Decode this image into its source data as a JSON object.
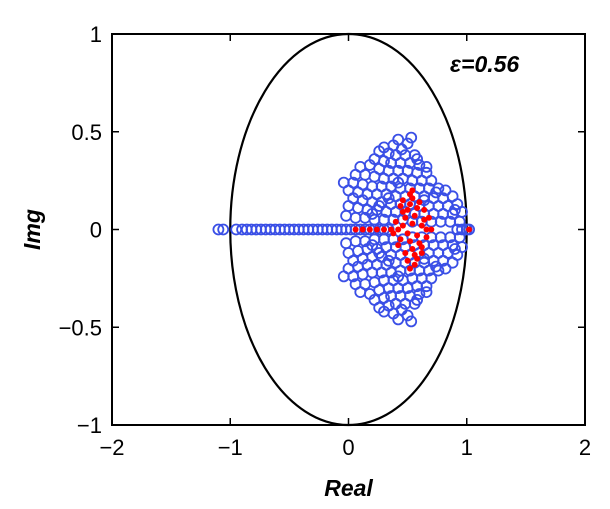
{
  "chart_data": {
    "type": "scatter",
    "title": "",
    "xlabel": "Real",
    "ylabel": "Img",
    "xlim": [
      -2,
      2
    ],
    "ylim": [
      -1,
      1
    ],
    "xticks": [
      -2,
      -1,
      0,
      1,
      2
    ],
    "yticks": [
      -1,
      -0.5,
      0,
      0.5,
      1
    ],
    "grid": false,
    "annotation": "ε=0.56",
    "reference_ellipse": {
      "center": [
        0,
        0
      ],
      "semi_axis_x": 1,
      "semi_axis_y": 1,
      "color": "#000000"
    },
    "series": [
      {
        "marker": "open-circle",
        "color": "#3a4fe6",
        "points": [
          [
            -1.1,
            0.0
          ],
          [
            -1.06,
            0.0
          ],
          [
            -0.95,
            0.0
          ],
          [
            -0.9,
            0.0
          ],
          [
            -0.86,
            0.0
          ],
          [
            -0.82,
            0.0
          ],
          [
            -0.78,
            0.0
          ],
          [
            -0.74,
            0.0
          ],
          [
            -0.7,
            0.0
          ],
          [
            -0.66,
            0.0
          ],
          [
            -0.62,
            0.0
          ],
          [
            -0.58,
            0.0
          ],
          [
            -0.54,
            0.0
          ],
          [
            -0.5,
            0.0
          ],
          [
            -0.46,
            0.0
          ],
          [
            -0.42,
            0.0
          ],
          [
            -0.38,
            0.0
          ],
          [
            -0.34,
            0.0
          ],
          [
            -0.3,
            0.0
          ],
          [
            -0.26,
            0.0
          ],
          [
            -0.22,
            0.0
          ],
          [
            -0.18,
            0.0
          ],
          [
            -0.14,
            0.0
          ],
          [
            -0.1,
            0.0
          ],
          [
            -0.06,
            0.0
          ],
          [
            -0.02,
            0.0
          ],
          [
            0.02,
            0.0
          ],
          [
            0.06,
            0.0
          ],
          [
            0.1,
            0.0
          ],
          [
            0.14,
            0.0
          ],
          [
            0.18,
            0.0
          ],
          [
            0.22,
            0.0
          ],
          [
            0.26,
            0.0
          ],
          [
            0.3,
            0.0
          ],
          [
            0.34,
            0.0
          ],
          [
            0.92,
            0.0
          ],
          [
            0.96,
            0.0
          ],
          [
            1.0,
            0.0
          ],
          [
            1.02,
            0.0
          ],
          [
            0.53,
            0.47
          ],
          [
            0.42,
            0.46
          ],
          [
            0.5,
            0.44
          ],
          [
            0.3,
            0.42
          ],
          [
            0.38,
            0.43
          ],
          [
            0.45,
            0.41
          ],
          [
            0.26,
            0.4
          ],
          [
            0.34,
            0.39
          ],
          [
            0.4,
            0.38
          ],
          [
            0.48,
            0.38
          ],
          [
            0.56,
            0.38
          ],
          [
            0.22,
            0.36
          ],
          [
            0.3,
            0.35
          ],
          [
            0.36,
            0.34
          ],
          [
            0.44,
            0.34
          ],
          [
            0.52,
            0.34
          ],
          [
            0.6,
            0.33
          ],
          [
            0.1,
            0.32
          ],
          [
            0.18,
            0.33
          ],
          [
            0.26,
            0.31
          ],
          [
            0.34,
            0.3
          ],
          [
            0.42,
            0.3
          ],
          [
            0.5,
            0.3
          ],
          [
            0.58,
            0.29
          ],
          [
            0.66,
            0.29
          ],
          [
            0.06,
            0.28
          ],
          [
            0.14,
            0.28
          ],
          [
            0.22,
            0.27
          ],
          [
            0.3,
            0.26
          ],
          [
            0.38,
            0.26
          ],
          [
            0.46,
            0.26
          ],
          [
            0.54,
            0.25
          ],
          [
            0.62,
            0.25
          ],
          [
            0.7,
            0.25
          ],
          [
            -0.04,
            0.24
          ],
          [
            0.04,
            0.24
          ],
          [
            0.12,
            0.23
          ],
          [
            0.2,
            0.22
          ],
          [
            0.28,
            0.22
          ],
          [
            0.36,
            0.22
          ],
          [
            0.44,
            0.21
          ],
          [
            0.52,
            0.21
          ],
          [
            0.6,
            0.21
          ],
          [
            0.68,
            0.21
          ],
          [
            0.76,
            0.21
          ],
          [
            0.0,
            0.2
          ],
          [
            0.08,
            0.19
          ],
          [
            0.16,
            0.18
          ],
          [
            0.24,
            0.18
          ],
          [
            0.32,
            0.18
          ],
          [
            0.4,
            0.17
          ],
          [
            0.48,
            0.17
          ],
          [
            0.56,
            0.17
          ],
          [
            0.64,
            0.17
          ],
          [
            0.72,
            0.16
          ],
          [
            0.8,
            0.16
          ],
          [
            0.88,
            0.17
          ],
          [
            0.04,
            0.16
          ],
          [
            0.12,
            0.15
          ],
          [
            0.2,
            0.14
          ],
          [
            0.28,
            0.14
          ],
          [
            0.36,
            0.13
          ],
          [
            0.44,
            0.13
          ],
          [
            0.52,
            0.13
          ],
          [
            0.6,
            0.12
          ],
          [
            0.68,
            0.12
          ],
          [
            0.76,
            0.12
          ],
          [
            0.84,
            0.12
          ],
          [
            0.92,
            0.13
          ],
          [
            0.0,
            0.12
          ],
          [
            0.08,
            0.11
          ],
          [
            0.16,
            0.1
          ],
          [
            0.24,
            0.1
          ],
          [
            0.32,
            0.09
          ],
          [
            0.4,
            0.09
          ],
          [
            0.48,
            0.09
          ],
          [
            0.56,
            0.08
          ],
          [
            0.64,
            0.08
          ],
          [
            0.72,
            0.08
          ],
          [
            0.8,
            0.08
          ],
          [
            0.88,
            0.08
          ],
          [
            0.96,
            0.09
          ],
          [
            -0.02,
            0.07
          ],
          [
            0.06,
            0.06
          ],
          [
            0.14,
            0.06
          ],
          [
            0.22,
            0.05
          ],
          [
            0.3,
            0.05
          ],
          [
            0.38,
            0.05
          ],
          [
            0.46,
            0.05
          ],
          [
            0.54,
            0.04
          ],
          [
            0.62,
            0.04
          ],
          [
            0.7,
            0.04
          ],
          [
            0.78,
            0.04
          ],
          [
            0.86,
            0.04
          ],
          [
            0.94,
            0.04
          ],
          [
            0.2,
            0.08
          ],
          [
            0.26,
            0.12
          ],
          [
            0.34,
            0.16
          ],
          [
            0.42,
            0.24
          ],
          [
            0.58,
            0.36
          ],
          [
            0.64,
            0.15
          ],
          [
            0.82,
            0.2
          ],
          [
            0.9,
            0.1
          ],
          [
            0.74,
            0.19
          ],
          [
            0.66,
            0.32
          ],
          [
            0.53,
            -0.47
          ],
          [
            0.42,
            -0.46
          ],
          [
            0.5,
            -0.44
          ],
          [
            0.3,
            -0.42
          ],
          [
            0.38,
            -0.43
          ],
          [
            0.45,
            -0.41
          ],
          [
            0.26,
            -0.4
          ],
          [
            0.34,
            -0.39
          ],
          [
            0.4,
            -0.38
          ],
          [
            0.48,
            -0.38
          ],
          [
            0.56,
            -0.38
          ],
          [
            0.22,
            -0.36
          ],
          [
            0.3,
            -0.35
          ],
          [
            0.36,
            -0.34
          ],
          [
            0.44,
            -0.34
          ],
          [
            0.52,
            -0.34
          ],
          [
            0.6,
            -0.33
          ],
          [
            0.1,
            -0.32
          ],
          [
            0.18,
            -0.33
          ],
          [
            0.26,
            -0.31
          ],
          [
            0.34,
            -0.3
          ],
          [
            0.42,
            -0.3
          ],
          [
            0.5,
            -0.3
          ],
          [
            0.58,
            -0.29
          ],
          [
            0.66,
            -0.29
          ],
          [
            0.06,
            -0.28
          ],
          [
            0.14,
            -0.28
          ],
          [
            0.22,
            -0.27
          ],
          [
            0.3,
            -0.26
          ],
          [
            0.38,
            -0.26
          ],
          [
            0.46,
            -0.26
          ],
          [
            0.54,
            -0.25
          ],
          [
            0.62,
            -0.25
          ],
          [
            0.7,
            -0.25
          ],
          [
            -0.04,
            -0.24
          ],
          [
            0.04,
            -0.24
          ],
          [
            0.12,
            -0.23
          ],
          [
            0.2,
            -0.22
          ],
          [
            0.28,
            -0.22
          ],
          [
            0.36,
            -0.22
          ],
          [
            0.44,
            -0.21
          ],
          [
            0.52,
            -0.21
          ],
          [
            0.6,
            -0.21
          ],
          [
            0.68,
            -0.21
          ],
          [
            0.76,
            -0.21
          ],
          [
            0.0,
            -0.2
          ],
          [
            0.08,
            -0.19
          ],
          [
            0.16,
            -0.18
          ],
          [
            0.24,
            -0.18
          ],
          [
            0.32,
            -0.18
          ],
          [
            0.4,
            -0.17
          ],
          [
            0.48,
            -0.17
          ],
          [
            0.56,
            -0.17
          ],
          [
            0.64,
            -0.17
          ],
          [
            0.72,
            -0.16
          ],
          [
            0.8,
            -0.16
          ],
          [
            0.88,
            -0.17
          ],
          [
            0.04,
            -0.16
          ],
          [
            0.12,
            -0.15
          ],
          [
            0.2,
            -0.14
          ],
          [
            0.28,
            -0.14
          ],
          [
            0.36,
            -0.13
          ],
          [
            0.44,
            -0.13
          ],
          [
            0.52,
            -0.13
          ],
          [
            0.6,
            -0.12
          ],
          [
            0.68,
            -0.12
          ],
          [
            0.76,
            -0.12
          ],
          [
            0.84,
            -0.12
          ],
          [
            0.92,
            -0.13
          ],
          [
            0.0,
            -0.12
          ],
          [
            0.08,
            -0.11
          ],
          [
            0.16,
            -0.1
          ],
          [
            0.24,
            -0.1
          ],
          [
            0.32,
            -0.09
          ],
          [
            0.4,
            -0.09
          ],
          [
            0.48,
            -0.09
          ],
          [
            0.56,
            -0.08
          ],
          [
            0.64,
            -0.08
          ],
          [
            0.72,
            -0.08
          ],
          [
            0.8,
            -0.08
          ],
          [
            0.88,
            -0.08
          ],
          [
            0.96,
            -0.09
          ],
          [
            -0.02,
            -0.07
          ],
          [
            0.06,
            -0.06
          ],
          [
            0.14,
            -0.06
          ],
          [
            0.22,
            -0.05
          ],
          [
            0.3,
            -0.05
          ],
          [
            0.38,
            -0.05
          ],
          [
            0.46,
            -0.05
          ],
          [
            0.54,
            -0.04
          ],
          [
            0.62,
            -0.04
          ],
          [
            0.7,
            -0.04
          ],
          [
            0.78,
            -0.04
          ],
          [
            0.86,
            -0.04
          ],
          [
            0.94,
            -0.04
          ],
          [
            0.2,
            -0.08
          ],
          [
            0.26,
            -0.12
          ],
          [
            0.34,
            -0.16
          ],
          [
            0.42,
            -0.24
          ],
          [
            0.58,
            -0.36
          ],
          [
            0.64,
            -0.15
          ],
          [
            0.82,
            -0.2
          ],
          [
            0.9,
            -0.1
          ],
          [
            0.74,
            -0.19
          ],
          [
            0.66,
            -0.32
          ]
        ]
      },
      {
        "marker": "filled-dot",
        "color": "#ff0000",
        "points": [
          [
            0.06,
            0.0
          ],
          [
            0.12,
            0.0
          ],
          [
            0.18,
            0.0
          ],
          [
            0.24,
            0.0
          ],
          [
            0.3,
            0.0
          ],
          [
            0.36,
            0.0
          ],
          [
            1.02,
            0.0
          ],
          [
            0.42,
            0.0
          ],
          [
            0.46,
            0.02
          ],
          [
            0.5,
            -0.02
          ],
          [
            0.54,
            0.03
          ],
          [
            0.58,
            -0.03
          ],
          [
            0.62,
            0.02
          ],
          [
            0.66,
            0.0
          ],
          [
            0.48,
            0.06
          ],
          [
            0.52,
            -0.06
          ],
          [
            0.56,
            0.07
          ],
          [
            0.6,
            -0.07
          ],
          [
            0.44,
            -0.05
          ],
          [
            0.64,
            0.05
          ],
          [
            0.5,
            0.1
          ],
          [
            0.54,
            -0.1
          ],
          [
            0.58,
            0.11
          ],
          [
            0.46,
            0.09
          ],
          [
            0.62,
            -0.09
          ],
          [
            0.52,
            0.13
          ],
          [
            0.56,
            -0.13
          ],
          [
            0.48,
            -0.12
          ],
          [
            0.6,
            0.14
          ],
          [
            0.54,
            0.16
          ],
          [
            0.5,
            -0.16
          ],
          [
            0.58,
            -0.15
          ],
          [
            0.44,
            0.12
          ],
          [
            0.66,
            -0.04
          ],
          [
            0.68,
            0.06
          ],
          [
            0.4,
            0.04
          ],
          [
            0.42,
            -0.08
          ],
          [
            0.64,
            0.1
          ],
          [
            0.52,
            0.18
          ],
          [
            0.56,
            -0.18
          ],
          [
            0.46,
            0.15
          ],
          [
            0.62,
            -0.12
          ],
          [
            0.7,
            0.0
          ],
          [
            0.38,
            -0.02
          ],
          [
            0.54,
            0.2
          ],
          [
            0.52,
            -0.2
          ]
        ]
      }
    ]
  }
}
